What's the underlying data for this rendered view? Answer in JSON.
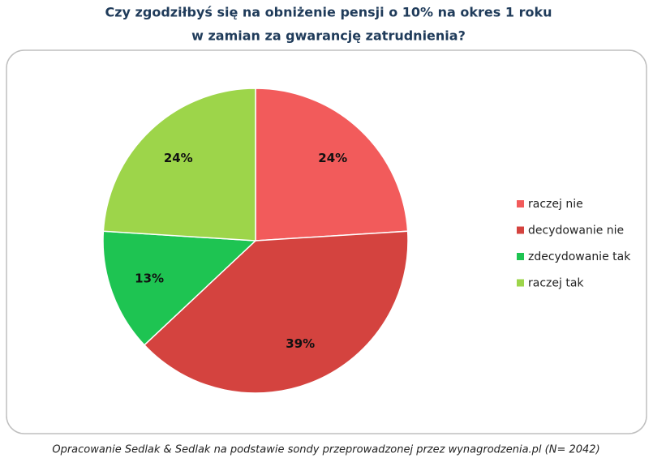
{
  "chart_data": {
    "type": "pie",
    "title": [
      "Czy zgodziłbyś się na obniżenie pensji o 10% na okres 1 roku",
      "w zamian za gwarancję zatrudnienia?"
    ],
    "categories": [
      "raczej nie",
      "decydowanie nie",
      "zdecydowanie tak",
      "raczej tak"
    ],
    "values": [
      24,
      39,
      13,
      24
    ],
    "value_labels": [
      "24%",
      "39%",
      "13%",
      "24%"
    ],
    "colors": [
      "#f25b5b",
      "#d4433f",
      "#1ec452",
      "#9dd54a"
    ],
    "legend": "right",
    "source": "Opracowanie Sedlak & Sedlak na podstawie sondy przeprowadzonej przez wynagrodzenia.pl  (N= 2042)"
  }
}
